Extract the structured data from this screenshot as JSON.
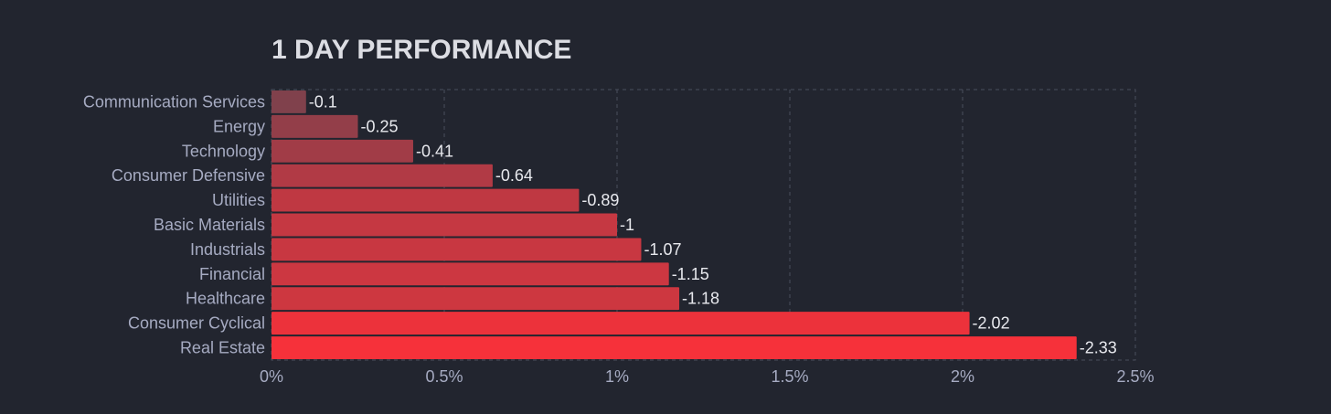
{
  "chart_data": {
    "type": "bar",
    "orientation": "horizontal",
    "title": "1 DAY PERFORMANCE",
    "categories": [
      "Communication Services",
      "Energy",
      "Technology",
      "Consumer Defensive",
      "Utilities",
      "Basic Materials",
      "Industrials",
      "Financial",
      "Healthcare",
      "Consumer Cyclical",
      "Real Estate"
    ],
    "values": [
      -0.1,
      -0.25,
      -0.41,
      -0.64,
      -0.89,
      -1,
      -1.07,
      -1.15,
      -1.18,
      -2.02,
      -2.33
    ],
    "value_labels": [
      "-0.1",
      "-0.25",
      "-0.41",
      "-0.64",
      "-0.89",
      "-1",
      "-1.07",
      "-1.15",
      "-1.18",
      "-2.02",
      "-2.33"
    ],
    "bar_length_basis": "absolute value",
    "xlim": [
      0,
      2.5
    ],
    "x_ticks": [
      0,
      0.5,
      1,
      1.5,
      2,
      2.5
    ],
    "x_tick_labels": [
      "0%",
      "0.5%",
      "1%",
      "1.5%",
      "2%",
      "2.5%"
    ],
    "xlabel": "",
    "ylabel": "",
    "grid": true,
    "colors": {
      "background": "#22252f",
      "bar_low": "#5a4652",
      "bar_high": "#f6313a",
      "grid": "#4a4e5c"
    }
  }
}
